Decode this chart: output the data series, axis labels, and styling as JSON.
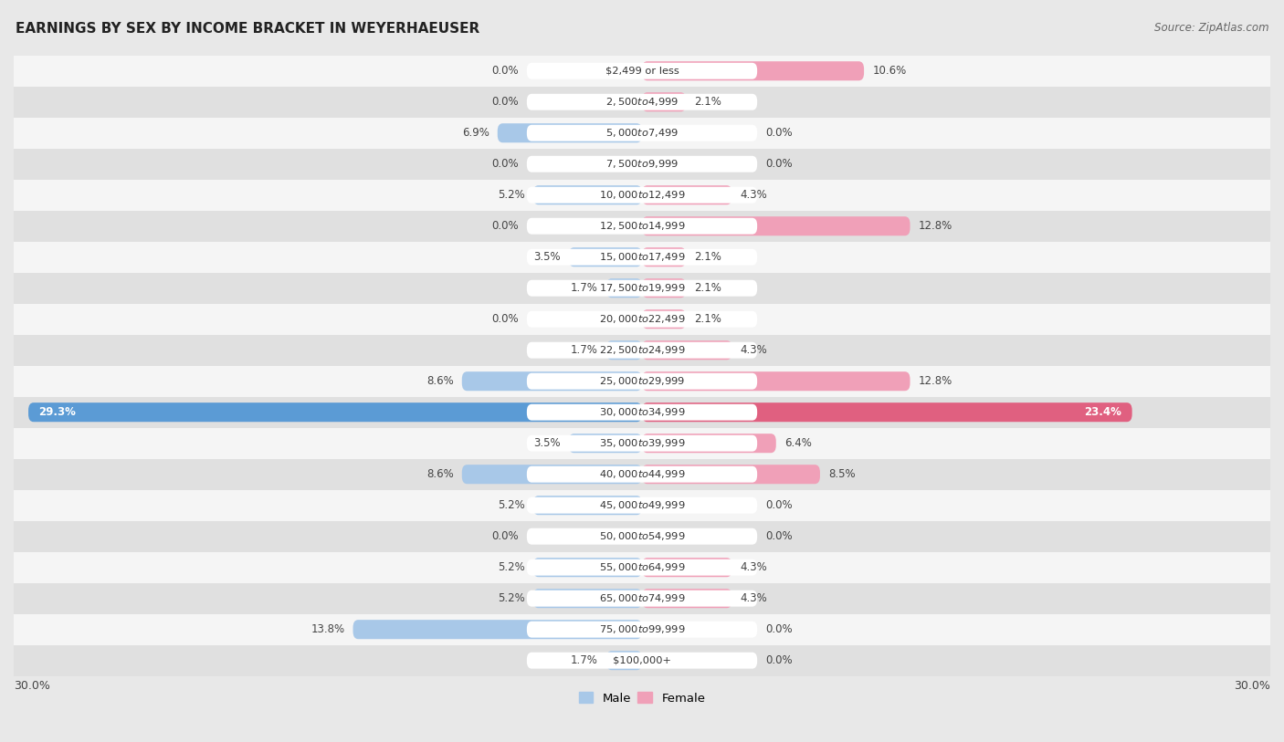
{
  "title": "EARNINGS BY SEX BY INCOME BRACKET IN WEYERHAEUSER",
  "source": "Source: ZipAtlas.com",
  "categories": [
    "$2,499 or less",
    "$2,500 to $4,999",
    "$5,000 to $7,499",
    "$7,500 to $9,999",
    "$10,000 to $12,499",
    "$12,500 to $14,999",
    "$15,000 to $17,499",
    "$17,500 to $19,999",
    "$20,000 to $22,499",
    "$22,500 to $24,999",
    "$25,000 to $29,999",
    "$30,000 to $34,999",
    "$35,000 to $39,999",
    "$40,000 to $44,999",
    "$45,000 to $49,999",
    "$50,000 to $54,999",
    "$55,000 to $64,999",
    "$65,000 to $74,999",
    "$75,000 to $99,999",
    "$100,000+"
  ],
  "male": [
    0.0,
    0.0,
    6.9,
    0.0,
    5.2,
    0.0,
    3.5,
    1.7,
    0.0,
    1.7,
    8.6,
    29.3,
    3.5,
    8.6,
    5.2,
    0.0,
    5.2,
    5.2,
    13.8,
    1.7
  ],
  "female": [
    10.6,
    2.1,
    0.0,
    0.0,
    4.3,
    12.8,
    2.1,
    2.1,
    2.1,
    4.3,
    12.8,
    23.4,
    6.4,
    8.5,
    0.0,
    0.0,
    4.3,
    4.3,
    0.0,
    0.0
  ],
  "male_color": "#a8c8e8",
  "female_color": "#f0a0b8",
  "male_highlight_color": "#5b9bd5",
  "female_highlight_color": "#e06080",
  "background_color": "#e8e8e8",
  "row_light": "#f5f5f5",
  "row_dark": "#e0e0e0",
  "xlim": 30.0,
  "legend_male": "Male",
  "legend_female": "Female"
}
